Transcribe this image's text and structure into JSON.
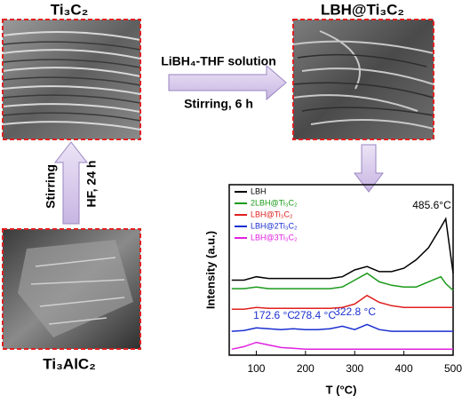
{
  "images": [
    {
      "label": "Ti₃C₂"
    },
    {
      "label": "LBH@Ti₃C₂"
    },
    {
      "label": "Ti₃AlC₂"
    }
  ],
  "arrows": {
    "horizontal": {
      "top": "LiBH₄-THF solution",
      "bottom": "Stirring, 6 h"
    },
    "vertical": {
      "left": "Stirring",
      "right": "HF, 24 h"
    }
  },
  "chart_data": {
    "type": "line",
    "xlabel": "T (°C)",
    "ylabel": "Intensity (a.u.)",
    "x": [
      50,
      75,
      100,
      125,
      150,
      175,
      200,
      225,
      250,
      275,
      300,
      325,
      350,
      375,
      400,
      425,
      450,
      475,
      485,
      500
    ],
    "xlim": [
      45,
      500
    ],
    "xticks": [
      100,
      200,
      300,
      400,
      500
    ],
    "ylim": [
      0,
      10
    ],
    "legend": "upper left",
    "series": [
      {
        "name": "LBH",
        "color": "#000000",
        "values": [
          4.4,
          4.4,
          4.6,
          4.5,
          4.5,
          4.5,
          4.5,
          4.5,
          4.5,
          4.6,
          5.0,
          5.2,
          4.9,
          4.9,
          5.1,
          5.6,
          6.3,
          7.5,
          8.0,
          4.8
        ]
      },
      {
        "name": "2LBH@Ti₃C₂",
        "color": "#1a9a1a",
        "values": [
          3.9,
          3.9,
          4.0,
          3.9,
          3.9,
          3.9,
          3.9,
          3.9,
          3.9,
          4.0,
          4.4,
          4.8,
          4.3,
          4.1,
          4.0,
          4.0,
          4.3,
          4.6,
          4.2,
          3.8
        ]
      },
      {
        "name": "LBH@Ti₃C₂",
        "color": "#e02020",
        "values": [
          2.7,
          2.7,
          2.8,
          2.75,
          2.75,
          2.75,
          2.75,
          2.75,
          2.75,
          2.8,
          3.0,
          3.5,
          3.1,
          2.9,
          2.8,
          2.8,
          2.8,
          2.8,
          2.8,
          2.8
        ]
      },
      {
        "name": "LBH@2Ti₃C₂",
        "color": "#1a2fd0",
        "values": [
          1.4,
          1.45,
          1.6,
          1.55,
          1.5,
          1.55,
          1.5,
          1.5,
          1.55,
          1.7,
          1.5,
          1.8,
          1.5,
          1.4,
          1.4,
          1.4,
          1.4,
          1.4,
          1.4,
          1.4
        ]
      },
      {
        "name": "LBH@3Ti₃C₂",
        "color": "#e020e0",
        "values": [
          0.35,
          0.5,
          0.75,
          0.6,
          0.45,
          0.4,
          0.35,
          0.35,
          0.35,
          0.35,
          0.35,
          0.35,
          0.35,
          0.35,
          0.35,
          0.35,
          0.35,
          0.35,
          0.35,
          0.35
        ]
      }
    ],
    "annotations": [
      {
        "text": "485.6°C"
      },
      {
        "text": "172.6 °C"
      },
      {
        "text": "278.4 °C"
      },
      {
        "text": "322.8 °C"
      }
    ]
  }
}
